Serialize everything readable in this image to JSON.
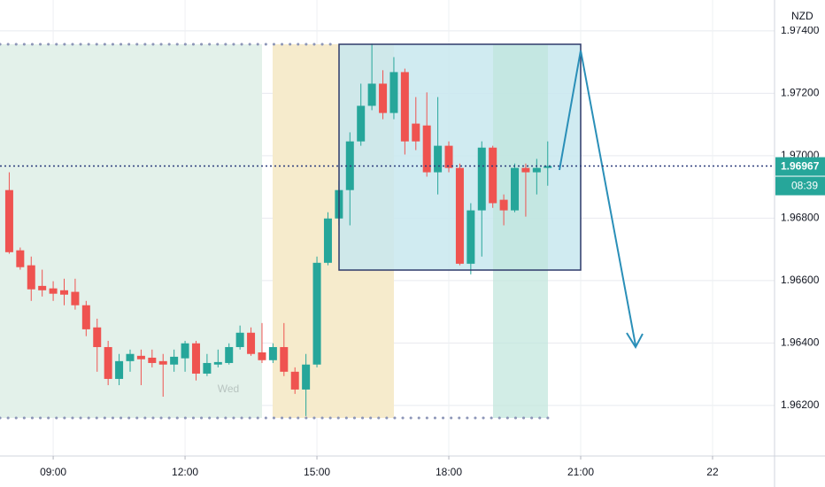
{
  "chart_data": {
    "type": "candlestick",
    "currency": "NZD",
    "annotation": "Wed",
    "last_price": 1.96967,
    "countdown": "08:39",
    "up_color": "#26a69a",
    "down_color": "#ef5350",
    "grid": true,
    "xlim": [
      7.79,
      25.41
    ],
    "ylim": [
      1.96038,
      1.97499
    ],
    "xticks": [
      {
        "value": 9,
        "label": "09:00"
      },
      {
        "value": 12,
        "label": "12:00"
      },
      {
        "value": 15,
        "label": "15:00"
      },
      {
        "value": 18,
        "label": "18:00"
      },
      {
        "value": 21,
        "label": "21:00"
      },
      {
        "value": 24,
        "label": "22"
      }
    ],
    "yticks": [
      {
        "value": 1.962,
        "label": "1.96200"
      },
      {
        "value": 1.964,
        "label": "1.96400"
      },
      {
        "value": 1.966,
        "label": "1.96600"
      },
      {
        "value": 1.968,
        "label": "1.96800"
      },
      {
        "value": 1.97,
        "label": "1.97000"
      },
      {
        "value": 1.972,
        "label": "1.97200"
      },
      {
        "value": 1.974,
        "label": "1.97400"
      }
    ],
    "x": [
      8,
      8.25,
      8.5,
      8.75,
      9,
      9.25,
      9.5,
      9.75,
      10,
      10.25,
      10.5,
      10.75,
      11,
      11.25,
      11.5,
      11.75,
      12,
      12.25,
      12.5,
      12.75,
      13,
      13.25,
      13.5,
      13.75,
      14,
      14.25,
      14.5,
      14.75,
      15,
      15.25,
      15.5,
      15.75,
      16,
      16.25,
      16.5,
      16.75,
      17,
      17.25,
      17.5,
      17.75,
      18,
      18.25,
      18.5,
      18.75,
      19,
      19.25,
      19.5,
      19.75,
      20,
      20.25
    ],
    "open": [
      1.9689,
      1.96697,
      1.96649,
      1.96583,
      1.96575,
      1.96569,
      1.96564,
      1.96521,
      1.9645,
      1.96387,
      1.96285,
      1.96342,
      1.96359,
      1.96353,
      1.96342,
      1.96331,
      1.96351,
      1.96399,
      1.96302,
      1.96331,
      1.96336,
      1.96387,
      1.96433,
      1.9637,
      1.96345,
      1.96387,
      1.96308,
      1.96251,
      1.96331,
      1.96657,
      1.96799,
      1.9689,
      1.97046,
      1.9716,
      1.97231,
      1.97137,
      1.97268,
      1.97103,
      1.97097,
      1.96947,
      1.97032,
      1.96961,
      1.96654,
      1.96825,
      1.97026,
      1.96859,
      1.96825,
      1.96961,
      1.96947,
      1.96961
    ],
    "high": [
      1.96947,
      1.96706,
      1.96677,
      1.96635,
      1.96598,
      1.96606,
      1.96606,
      1.96535,
      1.96478,
      1.96407,
      1.96365,
      1.96379,
      1.96379,
      1.96379,
      1.96365,
      1.96379,
      1.96407,
      1.96407,
      1.96365,
      1.96379,
      1.96399,
      1.96456,
      1.9645,
      1.96464,
      1.96399,
      1.96464,
      1.96322,
      1.96365,
      1.96677,
      1.96819,
      1.96919,
      1.97075,
      1.97231,
      1.97359,
      1.97274,
      1.97316,
      1.97279,
      1.97188,
      1.97203,
      1.97188,
      1.97046,
      1.96975,
      1.96848,
      1.97046,
      1.97032,
      1.96876,
      1.96975,
      1.96975,
      1.9699,
      1.97046
    ],
    "low": [
      1.96686,
      1.96635,
      1.96535,
      1.96549,
      1.96535,
      1.96521,
      1.96507,
      1.96422,
      1.96308,
      1.96265,
      1.96265,
      1.96308,
      1.96265,
      1.96322,
      1.96228,
      1.96308,
      1.96308,
      1.9628,
      1.96294,
      1.96322,
      1.96331,
      1.96379,
      1.96359,
      1.96336,
      1.96336,
      1.96294,
      1.96237,
      1.96166,
      1.96322,
      1.96649,
      1.96777,
      1.96777,
      1.97032,
      1.97146,
      1.97117,
      1.97117,
      1.97004,
      1.97018,
      1.96933,
      1.96876,
      1.96947,
      1.96649,
      1.9662,
      1.96677,
      1.96833,
      1.96777,
      1.96819,
      1.96805,
      1.96876,
      1.96904
    ],
    "close": [
      1.96691,
      1.96643,
      1.96572,
      1.96569,
      1.96558,
      1.96555,
      1.96521,
      1.96444,
      1.96387,
      1.96285,
      1.96342,
      1.96365,
      1.96348,
      1.96336,
      1.96331,
      1.96356,
      1.96399,
      1.96302,
      1.96336,
      1.96339,
      1.96387,
      1.96433,
      1.96365,
      1.96345,
      1.96387,
      1.96308,
      1.96251,
      1.96331,
      1.96657,
      1.96799,
      1.9689,
      1.97046,
      1.9716,
      1.97231,
      1.97137,
      1.97268,
      1.97046,
      1.97046,
      1.96947,
      1.97032,
      1.96961,
      1.96654,
      1.96825,
      1.97026,
      1.96848,
      1.96825,
      1.96961,
      1.96947,
      1.96961,
      1.96967
    ]
  }
}
